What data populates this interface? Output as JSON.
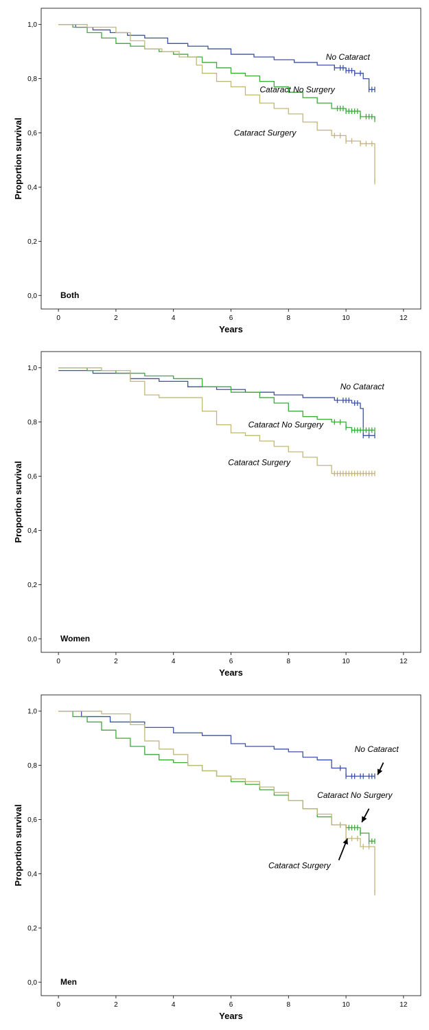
{
  "chart_data": [
    {
      "type": "line",
      "panel_label": "Both",
      "xlabel": "Years",
      "ylabel": "Proportion survival",
      "xlim": [
        -0.6,
        12.6
      ],
      "ylim": [
        -0.05,
        1.06
      ],
      "x_ticks": [
        0,
        2,
        4,
        6,
        8,
        10,
        12
      ],
      "x_tick_labels": [
        "0",
        "2",
        "4",
        "6",
        "8",
        "10",
        "12"
      ],
      "y_ticks": [
        0,
        0.2,
        0.4,
        0.6,
        0.8,
        1.0
      ],
      "y_tick_labels": [
        "0,0",
        "0,2",
        "0,4",
        "0,6",
        "0,8",
        "1,0"
      ],
      "grid": false,
      "colors": {
        "no_cataract": "#3a52a4",
        "cataract_no_surgery": "#3aaa3a",
        "cataract_surgery": "#c2b777"
      },
      "series": [
        {
          "key": "no_cataract",
          "x": [
            0,
            0.6,
            1.2,
            1.8,
            2.4,
            3.0,
            3.8,
            4.5,
            5.2,
            6.0,
            6.8,
            7.5,
            8.2,
            9.0,
            9.6,
            10.0,
            10.3,
            10.6,
            10.8,
            11.0
          ],
          "y": [
            1.0,
            0.99,
            0.98,
            0.97,
            0.96,
            0.95,
            0.93,
            0.92,
            0.91,
            0.89,
            0.88,
            0.87,
            0.86,
            0.85,
            0.84,
            0.83,
            0.82,
            0.8,
            0.76,
            0.76
          ],
          "censor_x": [
            9.6,
            9.8,
            9.9,
            10.0,
            10.1,
            10.2,
            10.3,
            10.5,
            10.8,
            10.9,
            11.0
          ]
        },
        {
          "key": "cataract_no_surgery",
          "x": [
            0,
            0.5,
            1.0,
            1.5,
            2.0,
            2.5,
            3.0,
            3.5,
            4.0,
            4.5,
            5.0,
            5.5,
            6.0,
            6.5,
            7.0,
            7.5,
            8.0,
            8.5,
            9.0,
            9.5,
            10.0,
            10.5,
            11.0
          ],
          "y": [
            1.0,
            0.99,
            0.97,
            0.95,
            0.93,
            0.92,
            0.91,
            0.9,
            0.89,
            0.88,
            0.86,
            0.84,
            0.82,
            0.81,
            0.79,
            0.77,
            0.75,
            0.73,
            0.71,
            0.69,
            0.68,
            0.66,
            0.65
          ],
          "censor_x": [
            9.7,
            9.8,
            9.9,
            10.0,
            10.1,
            10.2,
            10.3,
            10.4,
            10.5,
            10.7,
            10.8,
            10.9,
            11.0
          ]
        },
        {
          "key": "cataract_surgery",
          "x": [
            0,
            1.0,
            2.0,
            2.5,
            3.0,
            3.6,
            4.2,
            4.8,
            5.0,
            5.5,
            6.0,
            6.5,
            7.0,
            7.5,
            8.0,
            8.5,
            9.0,
            9.5,
            10.0,
            10.5,
            11.0,
            11.0
          ],
          "y": [
            1.0,
            0.99,
            0.97,
            0.94,
            0.91,
            0.9,
            0.88,
            0.85,
            0.82,
            0.79,
            0.77,
            0.74,
            0.71,
            0.69,
            0.67,
            0.64,
            0.61,
            0.59,
            0.57,
            0.56,
            0.555,
            0.42
          ],
          "censor_x": [
            9.6,
            9.8,
            10.0,
            10.2,
            10.5,
            10.7,
            10.9,
            11.0
          ]
        }
      ],
      "annotations": [
        {
          "text": "No Cataract",
          "x": 9.3,
          "y": 0.87
        },
        {
          "text": "Cataract No Surgery",
          "x": 7.0,
          "y": 0.75
        },
        {
          "text": "Cataract Surgery",
          "x": 6.1,
          "y": 0.59
        }
      ]
    },
    {
      "type": "line",
      "panel_label": "Women",
      "xlabel": "Years",
      "ylabel": "Proportion survival",
      "xlim": [
        -0.6,
        12.6
      ],
      "ylim": [
        -0.05,
        1.06
      ],
      "x_ticks": [
        0,
        2,
        4,
        6,
        8,
        10,
        12
      ],
      "x_tick_labels": [
        "0",
        "2",
        "4",
        "6",
        "8",
        "10",
        "12"
      ],
      "y_ticks": [
        0,
        0.2,
        0.4,
        0.6,
        0.8,
        1.0
      ],
      "y_tick_labels": [
        "0,0",
        "0,2",
        "0,4",
        "0,6",
        "0,8",
        "1,0"
      ],
      "grid": false,
      "colors": {
        "no_cataract": "#3a52a4",
        "cataract_no_surgery": "#3aaa3a",
        "cataract_surgery": "#c2b777"
      },
      "series": [
        {
          "key": "no_cataract",
          "x": [
            0,
            1.2,
            2.5,
            3.5,
            4.5,
            5.5,
            6.5,
            7.5,
            8.5,
            9.6,
            10.2,
            10.5,
            10.6,
            11.0
          ],
          "y": [
            0.99,
            0.98,
            0.96,
            0.95,
            0.93,
            0.92,
            0.91,
            0.9,
            0.89,
            0.88,
            0.87,
            0.85,
            0.75,
            0.75
          ],
          "censor_x": [
            9.7,
            9.9,
            10.0,
            10.1,
            10.3,
            10.4,
            10.6,
            10.8,
            11.0
          ]
        },
        {
          "key": "cataract_no_surgery",
          "x": [
            0,
            1.0,
            2.0,
            3.0,
            4.0,
            5.0,
            6.0,
            7.0,
            7.5,
            8.0,
            8.5,
            9.0,
            9.5,
            10.0,
            10.2,
            11.0
          ],
          "y": [
            1.0,
            0.99,
            0.98,
            0.97,
            0.96,
            0.93,
            0.91,
            0.89,
            0.87,
            0.84,
            0.82,
            0.81,
            0.8,
            0.78,
            0.77,
            0.77
          ],
          "censor_x": [
            9.6,
            9.8,
            10.0,
            10.2,
            10.3,
            10.4,
            10.5,
            10.6,
            10.7,
            10.8,
            10.9,
            11.0
          ]
        },
        {
          "key": "cataract_surgery",
          "x": [
            0,
            1.5,
            2.5,
            3.0,
            3.5,
            4.5,
            5.0,
            5.5,
            6.0,
            6.5,
            7.0,
            7.5,
            8.0,
            8.5,
            9.0,
            9.5,
            11.0
          ],
          "y": [
            1.0,
            0.99,
            0.95,
            0.9,
            0.89,
            0.89,
            0.84,
            0.79,
            0.76,
            0.75,
            0.73,
            0.71,
            0.69,
            0.67,
            0.64,
            0.61,
            0.61
          ],
          "censor_x": [
            9.6,
            9.7,
            9.8,
            9.9,
            10.0,
            10.1,
            10.2,
            10.3,
            10.4,
            10.5,
            10.6,
            10.7,
            10.8,
            10.9,
            11.0
          ]
        }
      ],
      "annotations": [
        {
          "text": "No Cataract",
          "x": 9.8,
          "y": 0.92
        },
        {
          "text": "Cataract No Surgery",
          "x": 6.6,
          "y": 0.78
        },
        {
          "text": "Cataract Surgery",
          "x": 5.9,
          "y": 0.64
        }
      ]
    },
    {
      "type": "line",
      "panel_label": "Men",
      "xlabel": "Years",
      "ylabel": "Proportion survival",
      "xlim": [
        -0.6,
        12.6
      ],
      "ylim": [
        -0.05,
        1.06
      ],
      "x_ticks": [
        0,
        2,
        4,
        6,
        8,
        10,
        12
      ],
      "x_tick_labels": [
        "0",
        "2",
        "4",
        "6",
        "8",
        "10",
        "12"
      ],
      "y_ticks": [
        0,
        0.2,
        0.4,
        0.6,
        0.8,
        1.0
      ],
      "y_tick_labels": [
        "0,0",
        "0,2",
        "0,4",
        "0,6",
        "0,8",
        "1,0"
      ],
      "grid": false,
      "colors": {
        "no_cataract": "#3a52a4",
        "cataract_no_surgery": "#3aaa3a",
        "cataract_surgery": "#c2b777"
      },
      "series": [
        {
          "key": "no_cataract",
          "x": [
            0,
            0.8,
            1.8,
            3.0,
            4.0,
            5.0,
            6.0,
            6.5,
            7.5,
            8.0,
            8.5,
            9.0,
            9.5,
            10.0,
            11.0
          ],
          "y": [
            1.0,
            0.98,
            0.96,
            0.94,
            0.92,
            0.91,
            0.88,
            0.87,
            0.86,
            0.85,
            0.83,
            0.82,
            0.79,
            0.76,
            0.76
          ],
          "censor_x": [
            9.8,
            10.0,
            10.2,
            10.3,
            10.5,
            10.6,
            10.8,
            10.9,
            11.0
          ]
        },
        {
          "key": "cataract_no_surgery",
          "x": [
            0,
            0.5,
            1.0,
            1.5,
            2.0,
            2.5,
            3.0,
            3.5,
            4.0,
            4.5,
            5.0,
            5.5,
            6.0,
            6.5,
            7.0,
            7.5,
            8.0,
            8.5,
            9.0,
            9.5,
            10.0,
            10.5,
            10.8,
            11.0
          ],
          "y": [
            1.0,
            0.98,
            0.96,
            0.93,
            0.9,
            0.87,
            0.84,
            0.82,
            0.81,
            0.8,
            0.78,
            0.76,
            0.74,
            0.73,
            0.71,
            0.69,
            0.67,
            0.64,
            0.61,
            0.58,
            0.57,
            0.55,
            0.52,
            0.52
          ],
          "censor_x": [
            9.8,
            10.0,
            10.1,
            10.2,
            10.3,
            10.4,
            10.5,
            10.8,
            10.9,
            11.0
          ]
        },
        {
          "key": "cataract_surgery",
          "x": [
            0,
            1.5,
            2.5,
            3.0,
            3.5,
            4.0,
            4.5,
            5.0,
            5.5,
            6.0,
            6.5,
            7.0,
            7.5,
            8.0,
            8.5,
            9.0,
            9.5,
            10.0,
            10.5,
            11.0,
            11.0
          ],
          "y": [
            1.0,
            0.99,
            0.95,
            0.89,
            0.86,
            0.84,
            0.8,
            0.78,
            0.76,
            0.75,
            0.74,
            0.72,
            0.7,
            0.67,
            0.64,
            0.62,
            0.58,
            0.53,
            0.5,
            0.5,
            0.33
          ],
          "censor_x": [
            9.8,
            10.0,
            10.2,
            10.4,
            10.6,
            10.8,
            11.0
          ]
        }
      ],
      "annotations": [
        {
          "text": "No Cataract",
          "x": 10.3,
          "y": 0.85
        },
        {
          "text": "Cataract No Surgery",
          "x": 9.0,
          "y": 0.68
        },
        {
          "text": "Cataract Surgery",
          "x": 7.3,
          "y": 0.42
        }
      ],
      "arrows": [
        {
          "from": [
            11.3,
            0.81
          ],
          "to": [
            11.1,
            0.765
          ]
        },
        {
          "from": [
            10.8,
            0.64
          ],
          "to": [
            10.55,
            0.59
          ]
        },
        {
          "from": [
            9.75,
            0.45
          ],
          "to": [
            10.05,
            0.53
          ]
        }
      ]
    }
  ]
}
